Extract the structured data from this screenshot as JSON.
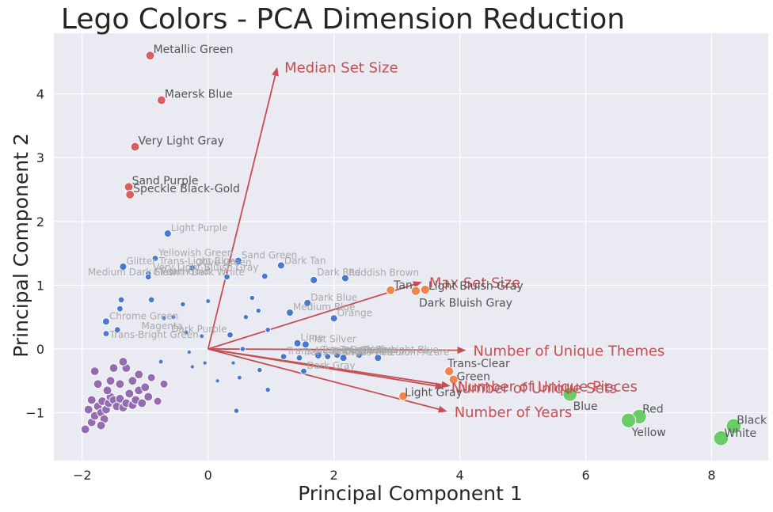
{
  "chart_data": {
    "type": "scatter",
    "title": "Lego Colors - PCA Dimension Reduction",
    "xlabel": "Principal Component 1",
    "ylabel": "Principal Component 2",
    "xlim": [
      -2.45,
      8.9
    ],
    "ylim": [
      -1.75,
      4.95
    ],
    "xticks": [
      -2,
      0,
      2,
      4,
      6,
      8
    ],
    "yticks": [
      -1,
      0,
      1,
      2,
      3,
      4
    ],
    "grid": true,
    "background": "#eaeaf2",
    "colors": {
      "cluster_red": "#d65f5f",
      "cluster_blue": "#4878cf",
      "cluster_purple": "#956cb4",
      "cluster_orange": "#ee854a",
      "cluster_green": "#6acc65",
      "arrow": "#c44e52",
      "label_dark": "#555555",
      "label_light": "#aaaaaa"
    },
    "loadings": [
      {
        "name": "Median Set Size",
        "x": 1.1,
        "y": 4.42
      },
      {
        "name": "Max Set Size",
        "x": 3.4,
        "y": 1.05
      },
      {
        "name": "Number of Unique Themes",
        "x": 4.1,
        "y": -0.02
      },
      {
        "name": "Number of Unique Sets",
        "x": 3.75,
        "y": -0.6
      },
      {
        "name": "Number of Unique Pieces",
        "x": 3.85,
        "y": -0.58
      },
      {
        "name": "Number of Years",
        "x": 3.8,
        "y": -0.98
      }
    ],
    "series": [
      {
        "cluster": "red",
        "points": [
          {
            "label": "Metallic Green",
            "x": -0.92,
            "y": 4.6,
            "s": 1
          },
          {
            "label": "Maersk Blue",
            "x": -0.74,
            "y": 3.9,
            "s": 1
          },
          {
            "label": "Very Light Gray",
            "x": -1.16,
            "y": 3.17,
            "s": 1
          },
          {
            "label": "Sand Purple",
            "x": -1.26,
            "y": 2.54,
            "s": 1
          },
          {
            "label": "Speckle Black-Gold",
            "x": -1.24,
            "y": 2.42,
            "s": 1
          }
        ]
      },
      {
        "cluster": "blue",
        "points": [
          {
            "label": "Light Purple",
            "x": -0.64,
            "y": 1.81,
            "s": 1
          },
          {
            "label": "Yellowish Green",
            "x": -0.84,
            "y": 1.42,
            "s": 0.8
          },
          {
            "label": "Sand Green",
            "x": 0.48,
            "y": 1.38,
            "s": 1
          },
          {
            "label": "Dark Tan",
            "x": 1.16,
            "y": 1.31,
            "s": 1
          },
          {
            "label": "Glitter Trans-Light Blue",
            "x": -1.35,
            "y": 1.29,
            "s": 1
          },
          {
            "label": "Olive Green",
            "x": -0.25,
            "y": 1.27,
            "s": 0.8
          },
          {
            "label": "Very Light Bluish Gray",
            "x": -0.95,
            "y": 1.18,
            "s": 0.8
          },
          {
            "label": "Glow In Dark White",
            "x": -0.95,
            "y": 1.13,
            "s": 0.8
          },
          {
            "label": "Medium Dark Flesh",
            "x": 0.3,
            "y": 1.13,
            "s": 0.8
          },
          {
            "label": "Pearl Gold",
            "x": 0.9,
            "y": 1.14,
            "s": 0.8
          },
          {
            "label": "Dark Red",
            "x": 1.68,
            "y": 1.08,
            "s": 1
          },
          {
            "label": "Reddish Brown",
            "x": 2.18,
            "y": 1.11,
            "s": 1
          },
          {
            "label": "Dark Blue",
            "x": 1.58,
            "y": 0.72,
            "s": 1
          },
          {
            "label": "Medium Blue",
            "x": 1.3,
            "y": 0.57,
            "s": 1
          },
          {
            "label": "Orange",
            "x": 2.0,
            "y": 0.48,
            "s": 1
          },
          {
            "label": "Chrome Green",
            "x": -1.62,
            "y": 0.43,
            "s": 1
          },
          {
            "label": "Magenta",
            "x": -0.35,
            "y": 0.26,
            "s": 0.4
          },
          {
            "label": "Dark Purple",
            "x": 0.35,
            "y": 0.22,
            "s": 0.8
          },
          {
            "label": "Trans-Bright Green",
            "x": -0.1,
            "y": 0.2,
            "s": 0.4
          },
          {
            "label": "Lime",
            "x": 1.42,
            "y": 0.09,
            "s": 1
          },
          {
            "label": "Flat Silver",
            "x": 1.55,
            "y": 0.07,
            "s": 1
          },
          {
            "label": "Trans-Dark Blue",
            "x": 1.75,
            "y": -0.1,
            "s": 1
          },
          {
            "label": "Trans-Black",
            "x": 1.9,
            "y": -0.12,
            "s": 0.8
          },
          {
            "label": "Trans-Yellow",
            "x": 2.05,
            "y": -0.1,
            "s": 0.8
          },
          {
            "label": "Trans-Red",
            "x": 2.15,
            "y": -0.14,
            "s": 1
          },
          {
            "label": "Trans-Light Blue",
            "x": 2.4,
            "y": -0.1,
            "s": 0.8
          },
          {
            "label": "Trans-Neon Green",
            "x": 1.2,
            "y": -0.12,
            "s": 0.8
          },
          {
            "label": "Trans-Orange",
            "x": 1.45,
            "y": -0.14,
            "s": 0.8
          },
          {
            "label": "Medium Azure",
            "x": 2.7,
            "y": -0.14,
            "s": 1
          },
          {
            "label": "Dark Gray",
            "x": 1.52,
            "y": -0.35,
            "s": 0.8
          },
          {
            "label": "",
            "x": 0.6,
            "y": 0.5,
            "s": 0.6
          },
          {
            "label": "",
            "x": 0.8,
            "y": 0.6,
            "s": 0.6
          },
          {
            "label": "",
            "x": 0.95,
            "y": 0.3,
            "s": 0.6
          },
          {
            "label": "",
            "x": 0.7,
            "y": 0.8,
            "s": 0.6
          },
          {
            "label": "",
            "x": 0.0,
            "y": 0.75,
            "s": 0.4
          },
          {
            "label": "",
            "x": -0.55,
            "y": 0.5,
            "s": 0.4
          },
          {
            "label": "",
            "x": -0.7,
            "y": 0.48,
            "s": 0.4
          },
          {
            "label": "",
            "x": -1.38,
            "y": 0.77,
            "s": 0.8
          },
          {
            "label": "",
            "x": -1.4,
            "y": 0.63,
            "s": 0.8
          },
          {
            "label": "",
            "x": -0.9,
            "y": 0.77,
            "s": 0.8
          },
          {
            "label": "",
            "x": -0.4,
            "y": 0.7,
            "s": 0.6
          },
          {
            "label": "",
            "x": -1.44,
            "y": 0.3,
            "s": 0.8
          },
          {
            "label": "",
            "x": -1.62,
            "y": 0.24,
            "s": 0.8
          },
          {
            "label": "",
            "x": -0.3,
            "y": -0.05,
            "s": 0.3
          },
          {
            "label": "",
            "x": -0.25,
            "y": -0.28,
            "s": 0.3
          },
          {
            "label": "",
            "x": -0.05,
            "y": -0.22,
            "s": 0.3
          },
          {
            "label": "",
            "x": 0.15,
            "y": -0.5,
            "s": 0.3
          },
          {
            "label": "",
            "x": 0.4,
            "y": -0.22,
            "s": 0.3
          },
          {
            "label": "",
            "x": 0.5,
            "y": -0.45,
            "s": 0.4
          },
          {
            "label": "",
            "x": 0.82,
            "y": -0.33,
            "s": 0.6
          },
          {
            "label": "",
            "x": 0.95,
            "y": -0.64,
            "s": 0.6
          },
          {
            "label": "",
            "x": 0.45,
            "y": -0.97,
            "s": 0.6
          },
          {
            "label": "",
            "x": 0.55,
            "y": 0.0,
            "s": 0.6
          },
          {
            "label": "",
            "x": -0.75,
            "y": -0.2,
            "s": 0.4
          }
        ]
      },
      {
        "cluster": "purple",
        "points": [
          {
            "label": "",
            "x": -1.95,
            "y": -1.26,
            "s": 1
          },
          {
            "label": "",
            "x": -1.85,
            "y": -1.15,
            "s": 1
          },
          {
            "label": "",
            "x": -1.9,
            "y": -0.95,
            "s": 1
          },
          {
            "label": "",
            "x": -1.8,
            "y": -1.05,
            "s": 1
          },
          {
            "label": "",
            "x": -1.75,
            "y": -0.9,
            "s": 1
          },
          {
            "label": "",
            "x": -1.7,
            "y": -1.0,
            "s": 1
          },
          {
            "label": "",
            "x": -1.68,
            "y": -0.82,
            "s": 1
          },
          {
            "label": "",
            "x": -1.62,
            "y": -0.95,
            "s": 1
          },
          {
            "label": "",
            "x": -1.65,
            "y": -1.1,
            "s": 1
          },
          {
            "label": "",
            "x": -1.58,
            "y": -0.85,
            "s": 1
          },
          {
            "label": "",
            "x": -1.55,
            "y": -0.75,
            "s": 1
          },
          {
            "label": "",
            "x": -1.5,
            "y": -0.8,
            "s": 1
          },
          {
            "label": "",
            "x": -1.45,
            "y": -0.9,
            "s": 1
          },
          {
            "label": "",
            "x": -1.4,
            "y": -0.78,
            "s": 1
          },
          {
            "label": "",
            "x": -1.35,
            "y": -0.92,
            "s": 1
          },
          {
            "label": "",
            "x": -1.3,
            "y": -0.85,
            "s": 1
          },
          {
            "label": "",
            "x": -1.25,
            "y": -0.7,
            "s": 1
          },
          {
            "label": "",
            "x": -1.2,
            "y": -0.88,
            "s": 1
          },
          {
            "label": "",
            "x": -1.15,
            "y": -0.8,
            "s": 1
          },
          {
            "label": "",
            "x": -1.1,
            "y": -0.65,
            "s": 1
          },
          {
            "label": "",
            "x": -1.05,
            "y": -0.85,
            "s": 1
          },
          {
            "label": "",
            "x": -1.0,
            "y": -0.6,
            "s": 1
          },
          {
            "label": "",
            "x": -0.95,
            "y": -0.75,
            "s": 1
          },
          {
            "label": "",
            "x": -0.9,
            "y": -0.45,
            "s": 0.8
          },
          {
            "label": "",
            "x": -0.8,
            "y": -0.82,
            "s": 0.8
          },
          {
            "label": "",
            "x": -0.7,
            "y": -0.55,
            "s": 0.8
          },
          {
            "label": "",
            "x": -1.4,
            "y": -0.55,
            "s": 1
          },
          {
            "label": "",
            "x": -1.5,
            "y": -0.3,
            "s": 1
          },
          {
            "label": "",
            "x": -1.3,
            "y": -0.3,
            "s": 1
          },
          {
            "label": "",
            "x": -1.1,
            "y": -0.4,
            "s": 1
          },
          {
            "label": "",
            "x": -1.75,
            "y": -0.55,
            "s": 1
          },
          {
            "label": "",
            "x": -1.55,
            "y": -0.5,
            "s": 1
          },
          {
            "label": "",
            "x": -1.8,
            "y": -0.35,
            "s": 1
          },
          {
            "label": "",
            "x": -1.2,
            "y": -0.5,
            "s": 1
          },
          {
            "label": "",
            "x": -1.35,
            "y": -0.2,
            "s": 1
          },
          {
            "label": "",
            "x": -1.85,
            "y": -0.8,
            "s": 1
          },
          {
            "label": "",
            "x": -1.7,
            "y": -1.2,
            "s": 1
          },
          {
            "label": "",
            "x": -1.6,
            "y": -0.65,
            "s": 1
          }
        ]
      },
      {
        "cluster": "orange",
        "points": [
          {
            "label": "Tan",
            "x": 2.9,
            "y": 0.92,
            "s": 1
          },
          {
            "label": "Light Bluish Gray",
            "x": 3.45,
            "y": 0.93,
            "s": 1.1
          },
          {
            "label": "Dark Bluish Gray",
            "x": 3.3,
            "y": 0.91,
            "s": 1.1
          },
          {
            "label": "Trans-Clear",
            "x": 3.83,
            "y": -0.35,
            "s": 1.1
          },
          {
            "label": "Green",
            "x": 3.9,
            "y": -0.48,
            "s": 1.1
          },
          {
            "label": "Light Gray",
            "x": 3.1,
            "y": -0.74,
            "s": 1
          }
        ]
      },
      {
        "cluster": "green",
        "points": [
          {
            "label": "Blue",
            "x": 5.75,
            "y": -0.71,
            "s": 1.3
          },
          {
            "label": "Red",
            "x": 6.85,
            "y": -1.06,
            "s": 1.4
          },
          {
            "label": "Yellow",
            "x": 6.68,
            "y": -1.12,
            "s": 1.4
          },
          {
            "label": "Black",
            "x": 8.35,
            "y": -1.21,
            "s": 1.5
          },
          {
            "label": "White",
            "x": 8.15,
            "y": -1.4,
            "s": 1.5
          }
        ]
      }
    ]
  }
}
